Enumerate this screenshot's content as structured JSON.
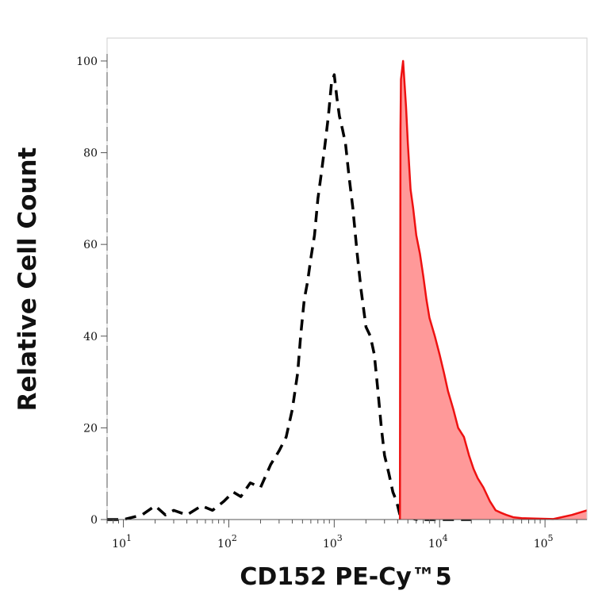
{
  "chart_data": {
    "type": "area",
    "xlabel": "CD152 PE-Cy™5",
    "ylabel": "Relative Cell Count",
    "x_scale": "log",
    "xlim": [
      7,
      250000
    ],
    "ylim": [
      0,
      105
    ],
    "x_ticks": [
      {
        "value": 10,
        "base": "10",
        "exp": "1"
      },
      {
        "value": 100,
        "base": "10",
        "exp": "2"
      },
      {
        "value": 1000,
        "base": "10",
        "exp": "3"
      },
      {
        "value": 10000,
        "base": "10",
        "exp": "4"
      },
      {
        "value": 100000,
        "base": "10",
        "exp": "5"
      }
    ],
    "y_ticks": [
      0,
      20,
      40,
      60,
      80,
      100
    ],
    "grid": false,
    "series": [
      {
        "style": "dashed",
        "color": "#000000",
        "fill": "none",
        "x": [
          7,
          10,
          15,
          20,
          25,
          30,
          40,
          55,
          70,
          90,
          110,
          130,
          160,
          200,
          250,
          300,
          350,
          400,
          450,
          480,
          520,
          560,
          600,
          650,
          700,
          760,
          820,
          880,
          940,
          1000,
          1060,
          1120,
          1200,
          1280,
          1380,
          1500,
          1650,
          1800,
          2000,
          2200,
          2400,
          2600,
          2800,
          3000,
          3300,
          3600,
          3900,
          4200,
          6000,
          10000,
          20000
        ],
        "y": [
          0,
          0,
          1,
          3,
          1,
          2,
          1,
          3,
          2,
          4,
          6,
          5,
          8,
          7,
          12,
          15,
          18,
          24,
          32,
          40,
          48,
          52,
          57,
          62,
          70,
          76,
          82,
          88,
          95,
          97,
          92,
          88,
          85,
          82,
          75,
          68,
          58,
          50,
          42,
          40,
          36,
          28,
          20,
          14,
          10,
          6,
          4,
          1,
          0,
          0,
          0
        ]
      },
      {
        "style": "solid",
        "color": "#ee1111",
        "fill": "#ff9999",
        "x": [
          4200,
          4250,
          4300,
          4500,
          4800,
          5000,
          5300,
          5600,
          6000,
          6500,
          7000,
          7500,
          8000,
          9000,
          10000,
          11000,
          12000,
          13500,
          15000,
          17000,
          19000,
          21000,
          23000,
          26000,
          30000,
          34000,
          38000,
          43000,
          50000,
          60000,
          80000,
          120000,
          180000,
          250000
        ],
        "y": [
          0,
          85,
          96,
          100,
          90,
          82,
          72,
          68,
          62,
          58,
          53,
          48,
          44,
          40,
          36,
          32,
          28,
          24,
          20,
          18,
          14,
          11,
          9,
          7,
          4,
          2,
          1.5,
          1,
          0.5,
          0.3,
          0.2,
          0.1,
          1,
          2
        ]
      }
    ]
  }
}
